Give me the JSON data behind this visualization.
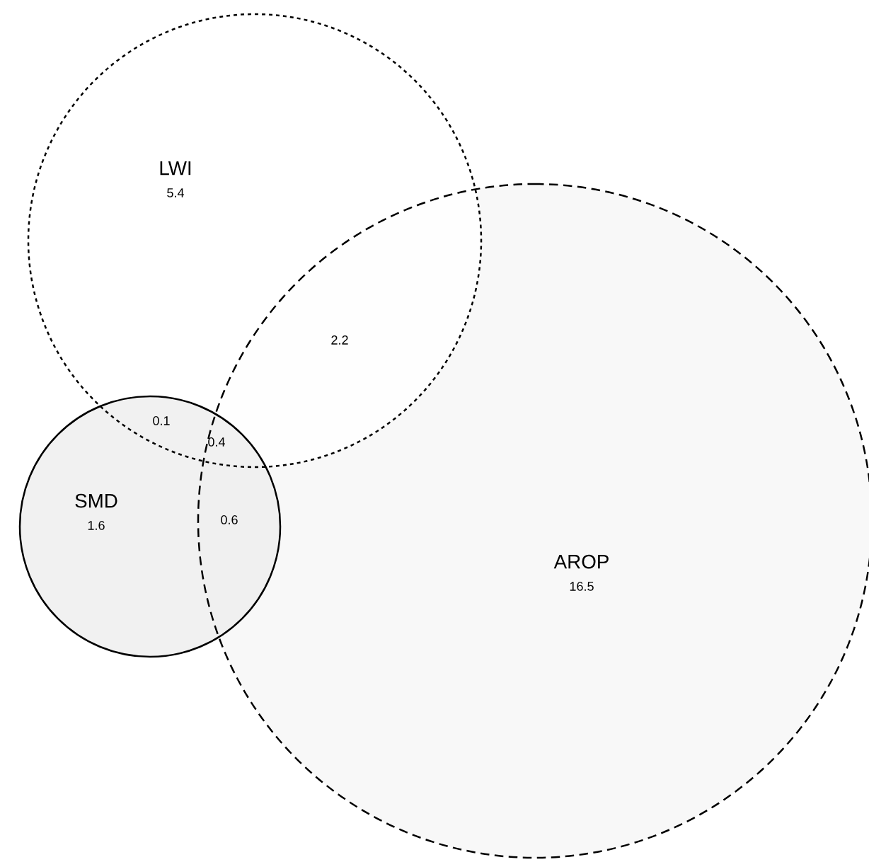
{
  "chart_data": {
    "type": "other",
    "categories": [
      "LWI",
      "SMD",
      "AROP"
    ],
    "values": [
      5.4,
      1.6,
      16.5
    ],
    "colors": [
      "#ffffff",
      "#eeeeee",
      "#f7f7f7"
    ],
    "data_labels": true,
    "annotations": [
      "2.2",
      "0.1",
      "0.4",
      "0.6"
    ]
  }
}
